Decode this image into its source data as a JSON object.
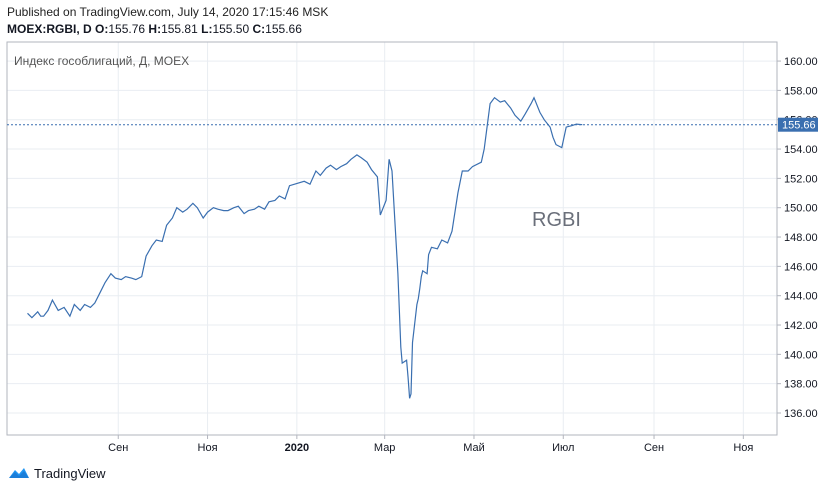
{
  "header": {
    "published": "Published on TradingView.com, July 14, 2020 17:15:46 MSK",
    "symbol": "MOEX:RGBI, D",
    "o_label": "O:",
    "o_value": "155.76",
    "h_label": "H:",
    "h_value": "155.81",
    "l_label": "L:",
    "l_value": "155.50",
    "c_label": "C:",
    "c_value": "155.66"
  },
  "footer": {
    "brand": "TradingView",
    "logo_icon": "tradingview-logo-icon"
  },
  "colors": {
    "line": "#3a6fb0",
    "grid": "#e9edf2",
    "border": "#b2b5be",
    "price_tag": "#3a6fb0",
    "text": "#131722"
  },
  "chart_data": {
    "type": "line",
    "title": "Индекс гособлигаций, Д, MOEX",
    "watermark": "RGBI",
    "last_price": "155.66",
    "ylim": [
      134.5,
      161.3
    ],
    "y_ticks": [
      "160.00",
      "158.00",
      "156.00",
      "154.00",
      "152.00",
      "150.00",
      "148.00",
      "146.00",
      "144.00",
      "142.00",
      "140.00",
      "138.00",
      "136.00"
    ],
    "x_ticks": [
      "Сен",
      "Ноя",
      "2020",
      "Мар",
      "Май",
      "Июл",
      "Сен",
      "Ноя"
    ],
    "grid": true,
    "series": [
      {
        "x": [
          "2019-07-01",
          "2019-07-04",
          "2019-07-08",
          "2019-07-10",
          "2019-07-12",
          "2019-07-15",
          "2019-07-18",
          "2019-07-22",
          "2019-07-26",
          "2019-07-30",
          "2019-08-02",
          "2019-08-06",
          "2019-08-09",
          "2019-08-13",
          "2019-08-16",
          "2019-08-20",
          "2019-08-23",
          "2019-08-27",
          "2019-08-30",
          "2019-09-03",
          "2019-09-06",
          "2019-09-10",
          "2019-09-13",
          "2019-09-17",
          "2019-09-20",
          "2019-09-24",
          "2019-09-27",
          "2019-10-01",
          "2019-10-04",
          "2019-10-08",
          "2019-10-11",
          "2019-10-15",
          "2019-10-18",
          "2019-10-22",
          "2019-10-25",
          "2019-10-29",
          "2019-11-01",
          "2019-11-05",
          "2019-11-08",
          "2019-11-12",
          "2019-11-15",
          "2019-11-19",
          "2019-11-22",
          "2019-11-26",
          "2019-11-29",
          "2019-12-03",
          "2019-12-06",
          "2019-12-10",
          "2019-12-13",
          "2019-12-17",
          "2019-12-20",
          "2019-12-24",
          "2019-12-27",
          "2020-01-06",
          "2020-01-10",
          "2020-01-14",
          "2020-01-17",
          "2020-01-21",
          "2020-01-24",
          "2020-01-28",
          "2020-01-31",
          "2020-02-04",
          "2020-02-07",
          "2020-02-11",
          "2020-02-14",
          "2020-02-18",
          "2020-02-21",
          "2020-02-25",
          "2020-02-27",
          "2020-03-02",
          "2020-03-04",
          "2020-03-06",
          "2020-03-10",
          "2020-03-12",
          "2020-03-13",
          "2020-03-16",
          "2020-03-17",
          "2020-03-18",
          "2020-03-19",
          "2020-03-20",
          "2020-03-23",
          "2020-03-24",
          "2020-03-25",
          "2020-03-26",
          "2020-03-27",
          "2020-03-30",
          "2020-03-31",
          "2020-04-02",
          "2020-04-06",
          "2020-04-09",
          "2020-04-13",
          "2020-04-16",
          "2020-04-20",
          "2020-04-23",
          "2020-04-27",
          "2020-04-30",
          "2020-05-06",
          "2020-05-08",
          "2020-05-12",
          "2020-05-15",
          "2020-05-19",
          "2020-05-22",
          "2020-05-26",
          "2020-05-29",
          "2020-06-02",
          "2020-06-05",
          "2020-06-09",
          "2020-06-11",
          "2020-06-15",
          "2020-06-18",
          "2020-06-22",
          "2020-06-24",
          "2020-06-26",
          "2020-06-30",
          "2020-07-03",
          "2020-07-07",
          "2020-07-10",
          "2020-07-14"
        ],
        "y": [
          142.8,
          142.5,
          142.9,
          142.6,
          142.6,
          143.0,
          143.7,
          143.0,
          143.2,
          142.6,
          143.4,
          143.0,
          143.4,
          143.2,
          143.5,
          144.3,
          144.9,
          145.5,
          145.2,
          145.1,
          145.3,
          145.2,
          145.1,
          145.3,
          146.7,
          147.4,
          147.8,
          147.7,
          148.8,
          149.3,
          150.0,
          149.7,
          149.9,
          150.3,
          150.0,
          149.3,
          149.7,
          150.0,
          149.9,
          149.8,
          149.8,
          150.0,
          150.1,
          149.6,
          149.8,
          149.9,
          150.1,
          149.9,
          150.4,
          150.5,
          150.8,
          150.6,
          151.5,
          151.8,
          151.6,
          152.5,
          152.2,
          152.7,
          152.9,
          152.6,
          152.8,
          153.0,
          153.3,
          153.6,
          153.4,
          153.1,
          152.6,
          152.1,
          149.5,
          150.5,
          153.3,
          152.5,
          145.5,
          140.5,
          139.4,
          139.6,
          138.4,
          137.0,
          137.3,
          140.8,
          143.4,
          143.8,
          144.5,
          145.3,
          145.7,
          145.5,
          146.8,
          147.3,
          147.2,
          147.8,
          147.6,
          148.4,
          151.0,
          152.5,
          152.5,
          152.8,
          153.1,
          154.0,
          157.1,
          157.5,
          157.2,
          157.3,
          156.8,
          156.3,
          155.9,
          156.4,
          157.1,
          157.5,
          156.5,
          156.0,
          155.5,
          154.8,
          154.3,
          154.1,
          155.5,
          155.6,
          155.7,
          155.66
        ]
      }
    ]
  }
}
